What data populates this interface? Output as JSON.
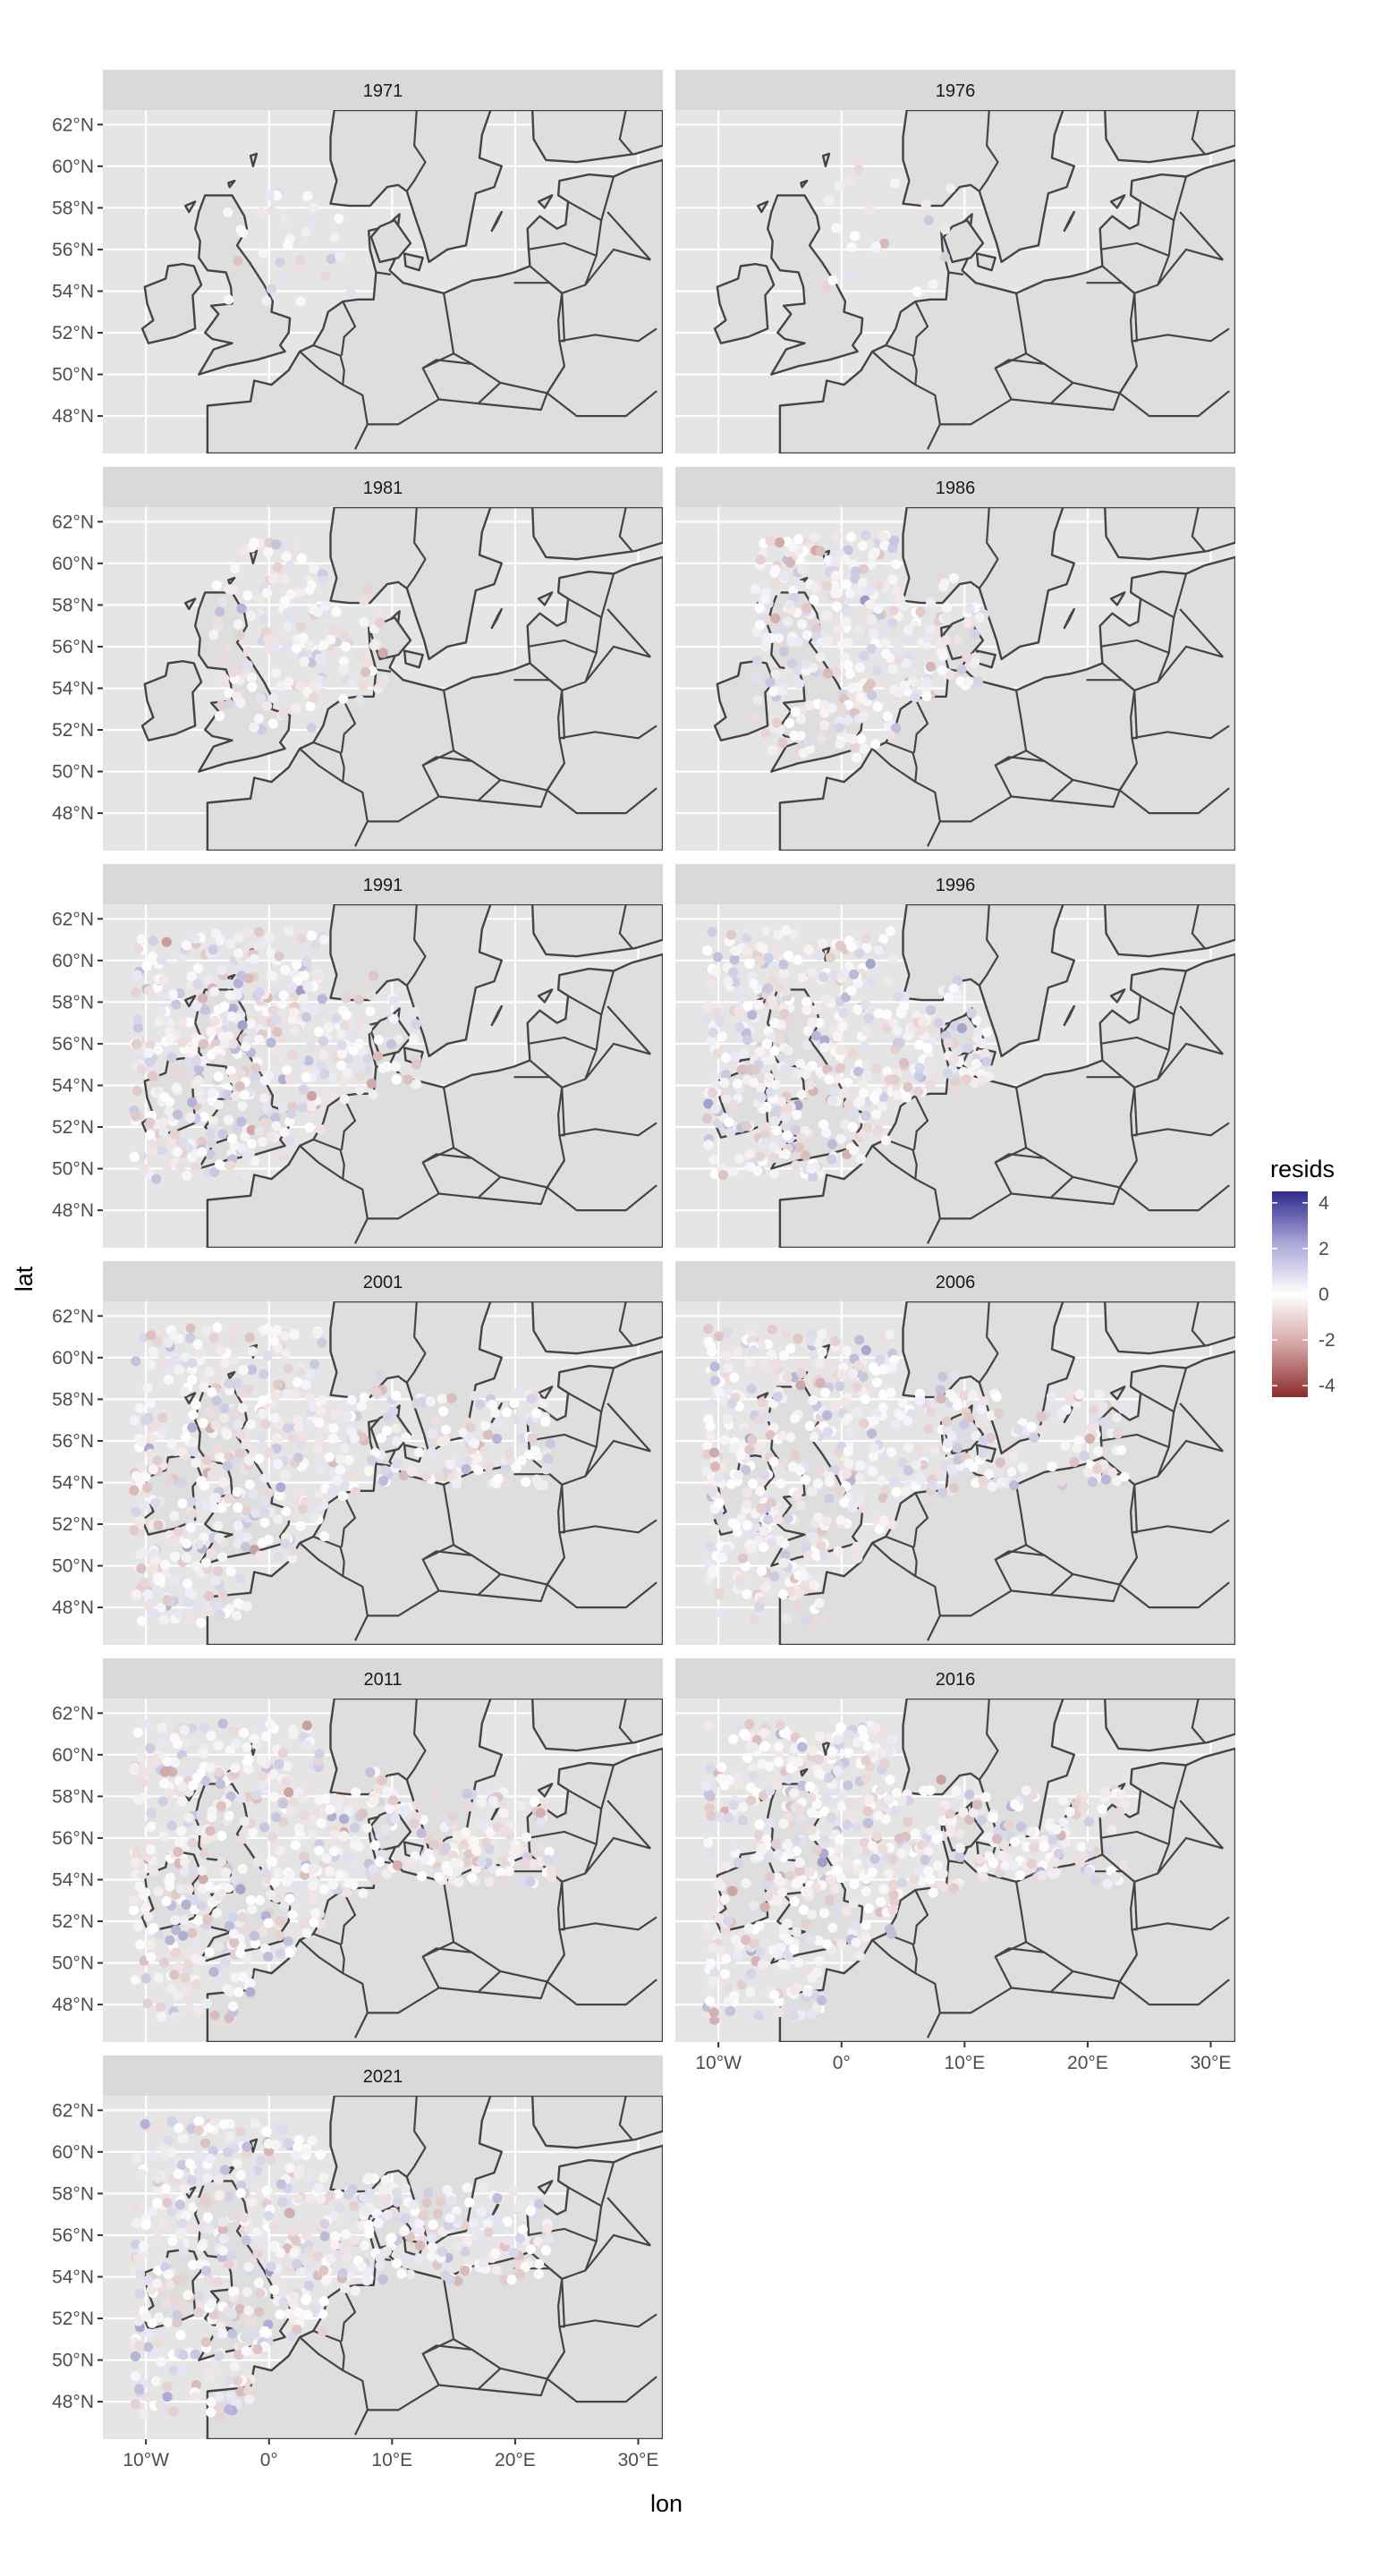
{
  "chart_data": {
    "type": "scatter",
    "facet_by": "year",
    "panels": [
      "1971",
      "1976",
      "1981",
      "1986",
      "1991",
      "1996",
      "2001",
      "2006",
      "2011",
      "2016",
      "2021"
    ],
    "xlabel": "lon",
    "ylabel": "lat",
    "x_ticks": [
      "10°W",
      "0°",
      "10°E",
      "20°E",
      "30°E"
    ],
    "y_ticks": [
      "62°N",
      "60°N",
      "58°N",
      "56°N",
      "54°N",
      "52°N",
      "50°N",
      "48°N"
    ],
    "xlim": [
      -13.5,
      32
    ],
    "ylim": [
      46.2,
      62.7
    ],
    "grid": true,
    "color_legend": {
      "title": "resids",
      "ticks": [
        "4",
        "2",
        "0",
        "-2",
        "-4"
      ],
      "range": [
        -4.5,
        4.5
      ],
      "low_color": "#8b2b2b",
      "mid_color": "#ffffff",
      "high_color": "#2f2a8a"
    },
    "panel_background": "#e5e5e5",
    "land_fill": "#dedede",
    "border_color": "#444444",
    "strip_fill": "#d9d9d9"
  }
}
